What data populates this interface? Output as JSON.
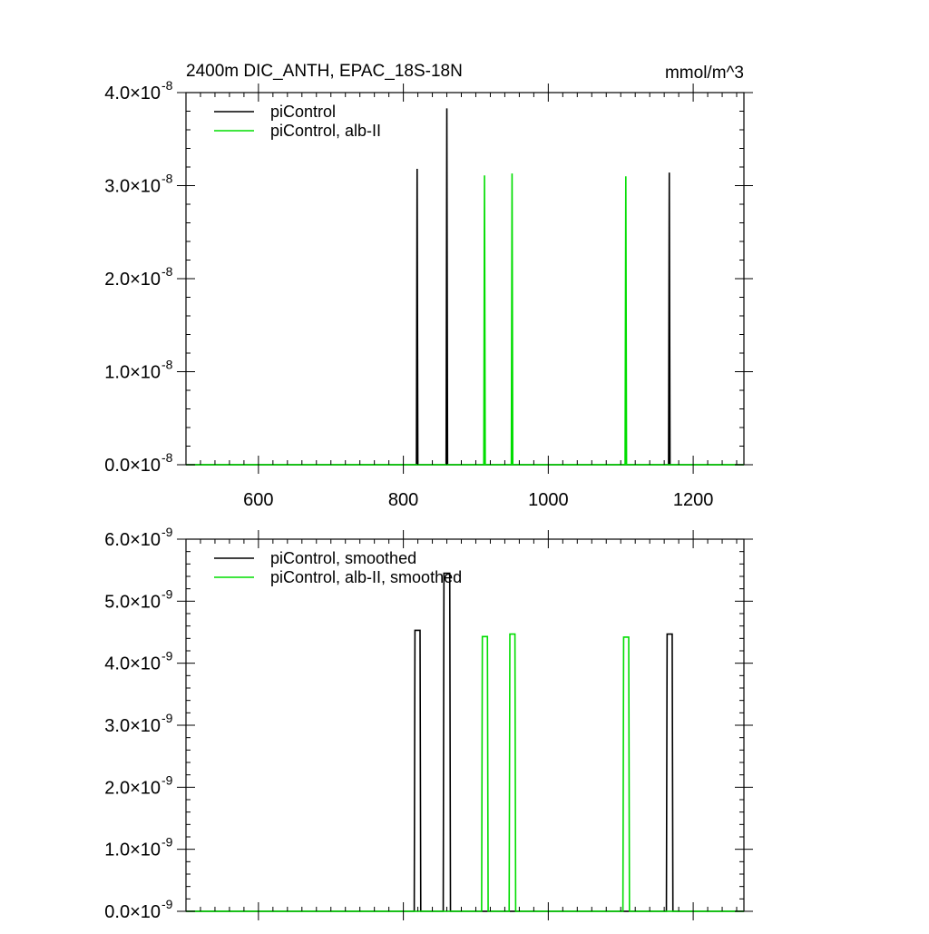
{
  "chart_data": [
    {
      "type": "line",
      "title_left": "2400m DIC_ANTH, EPAC_18S-18N",
      "title_right": "mmol/m^3",
      "xlim": [
        500,
        1270
      ],
      "xticks": [
        600,
        800,
        1000,
        1200
      ],
      "xtick_labels": [
        "600",
        "800",
        "1000",
        "1200"
      ],
      "ylim": [
        0,
        4e-08
      ],
      "ytick_labels": [
        {
          "value": 0.0,
          "mant": "0.0×10",
          "exp": "-8"
        },
        {
          "value": 1e-08,
          "mant": "1.0×10",
          "exp": "-8"
        },
        {
          "value": 2e-08,
          "mant": "2.0×10",
          "exp": "-8"
        },
        {
          "value": 3e-08,
          "mant": "3.0×10",
          "exp": "-8"
        },
        {
          "value": 4e-08,
          "mant": "4.0×10",
          "exp": "-8"
        }
      ],
      "grid": false,
      "legend_position": "top-left",
      "series": [
        {
          "name": "piControl",
          "color": "#000000",
          "x": [
            500,
            818,
            819,
            820,
            859,
            860,
            861,
            1166,
            1167,
            1168,
            1270
          ],
          "y": [
            0,
            0,
            3.18e-08,
            0,
            0,
            3.83e-08,
            0,
            0,
            3.14e-08,
            0,
            0
          ]
        },
        {
          "name": "piControl, alb-II",
          "color": "#00dd00",
          "x": [
            500,
            911,
            912,
            913,
            949,
            950,
            951,
            1106,
            1107,
            1108,
            1270
          ],
          "y": [
            0,
            0,
            3.11e-08,
            0,
            0,
            3.13e-08,
            0,
            0,
            3.1e-08,
            0,
            0
          ]
        }
      ]
    },
    {
      "type": "line",
      "xlim": [
        500,
        1270
      ],
      "xticks": [
        600,
        800,
        1000,
        1200
      ],
      "ylim": [
        0,
        6e-09
      ],
      "ytick_labels": [
        {
          "value": 0.0,
          "mant": "0.0×10",
          "exp": "-9"
        },
        {
          "value": 1e-09,
          "mant": "1.0×10",
          "exp": "-9"
        },
        {
          "value": 2e-09,
          "mant": "2.0×10",
          "exp": "-9"
        },
        {
          "value": 3e-09,
          "mant": "3.0×10",
          "exp": "-9"
        },
        {
          "value": 4e-09,
          "mant": "4.0×10",
          "exp": "-9"
        },
        {
          "value": 5e-09,
          "mant": "5.0×10",
          "exp": "-9"
        },
        {
          "value": 6e-09,
          "mant": "6.0×10",
          "exp": "-9"
        }
      ],
      "grid": false,
      "legend_position": "top-left",
      "series": [
        {
          "name": "piControl, smoothed",
          "color": "#000000",
          "x": [
            500,
            815,
            816,
            823,
            824,
            855,
            856,
            864,
            865,
            1163,
            1164,
            1171,
            1172,
            1270
          ],
          "y": [
            0,
            0,
            4.53e-09,
            4.53e-09,
            0,
            0,
            5.45e-09,
            5.45e-09,
            0,
            0,
            4.47e-09,
            4.47e-09,
            0,
            0
          ]
        },
        {
          "name": "piControl, alb-II, smoothed",
          "color": "#00dd00",
          "x": [
            500,
            908,
            909,
            916,
            917,
            946,
            947,
            954,
            955,
            1103,
            1104,
            1111,
            1112,
            1270
          ],
          "y": [
            0,
            0,
            4.43e-09,
            4.43e-09,
            0,
            0,
            4.47e-09,
            4.47e-09,
            0,
            0,
            4.42e-09,
            4.42e-09,
            0,
            0
          ]
        }
      ]
    }
  ]
}
